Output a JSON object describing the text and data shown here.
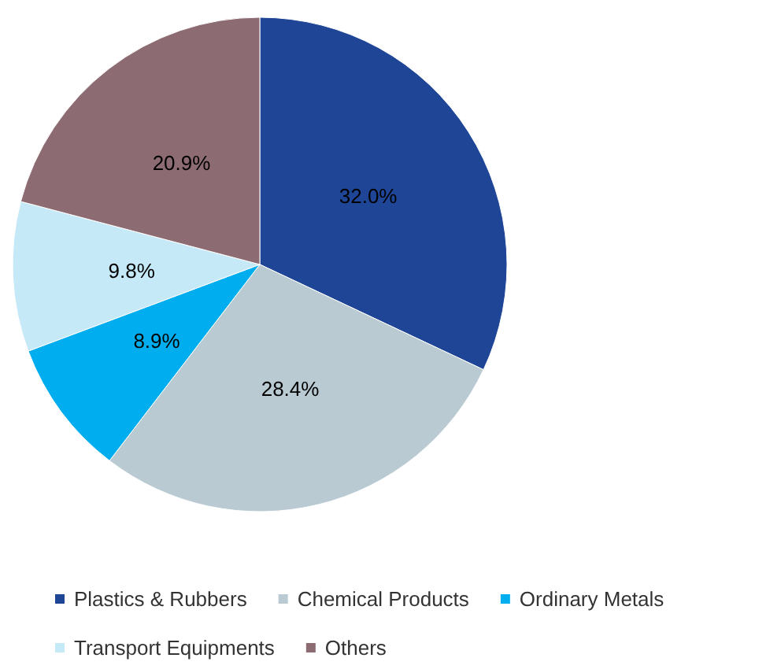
{
  "chart_data": {
    "type": "pie",
    "categories": [
      "Plastics & Rubbers",
      "Chemical Products",
      "Ordinary Metals",
      "Transport Equipments",
      "Others"
    ],
    "values": [
      32.0,
      28.4,
      8.9,
      9.8,
      20.9
    ],
    "colors": [
      "#1f4696",
      "#b9cad3",
      "#00aeef",
      "#c6e9f8",
      "#8c6b72"
    ],
    "value_labels": [
      "32.0%",
      "28.4%",
      "8.9%",
      "9.8%",
      "20.9%"
    ],
    "legend": "bottom"
  }
}
